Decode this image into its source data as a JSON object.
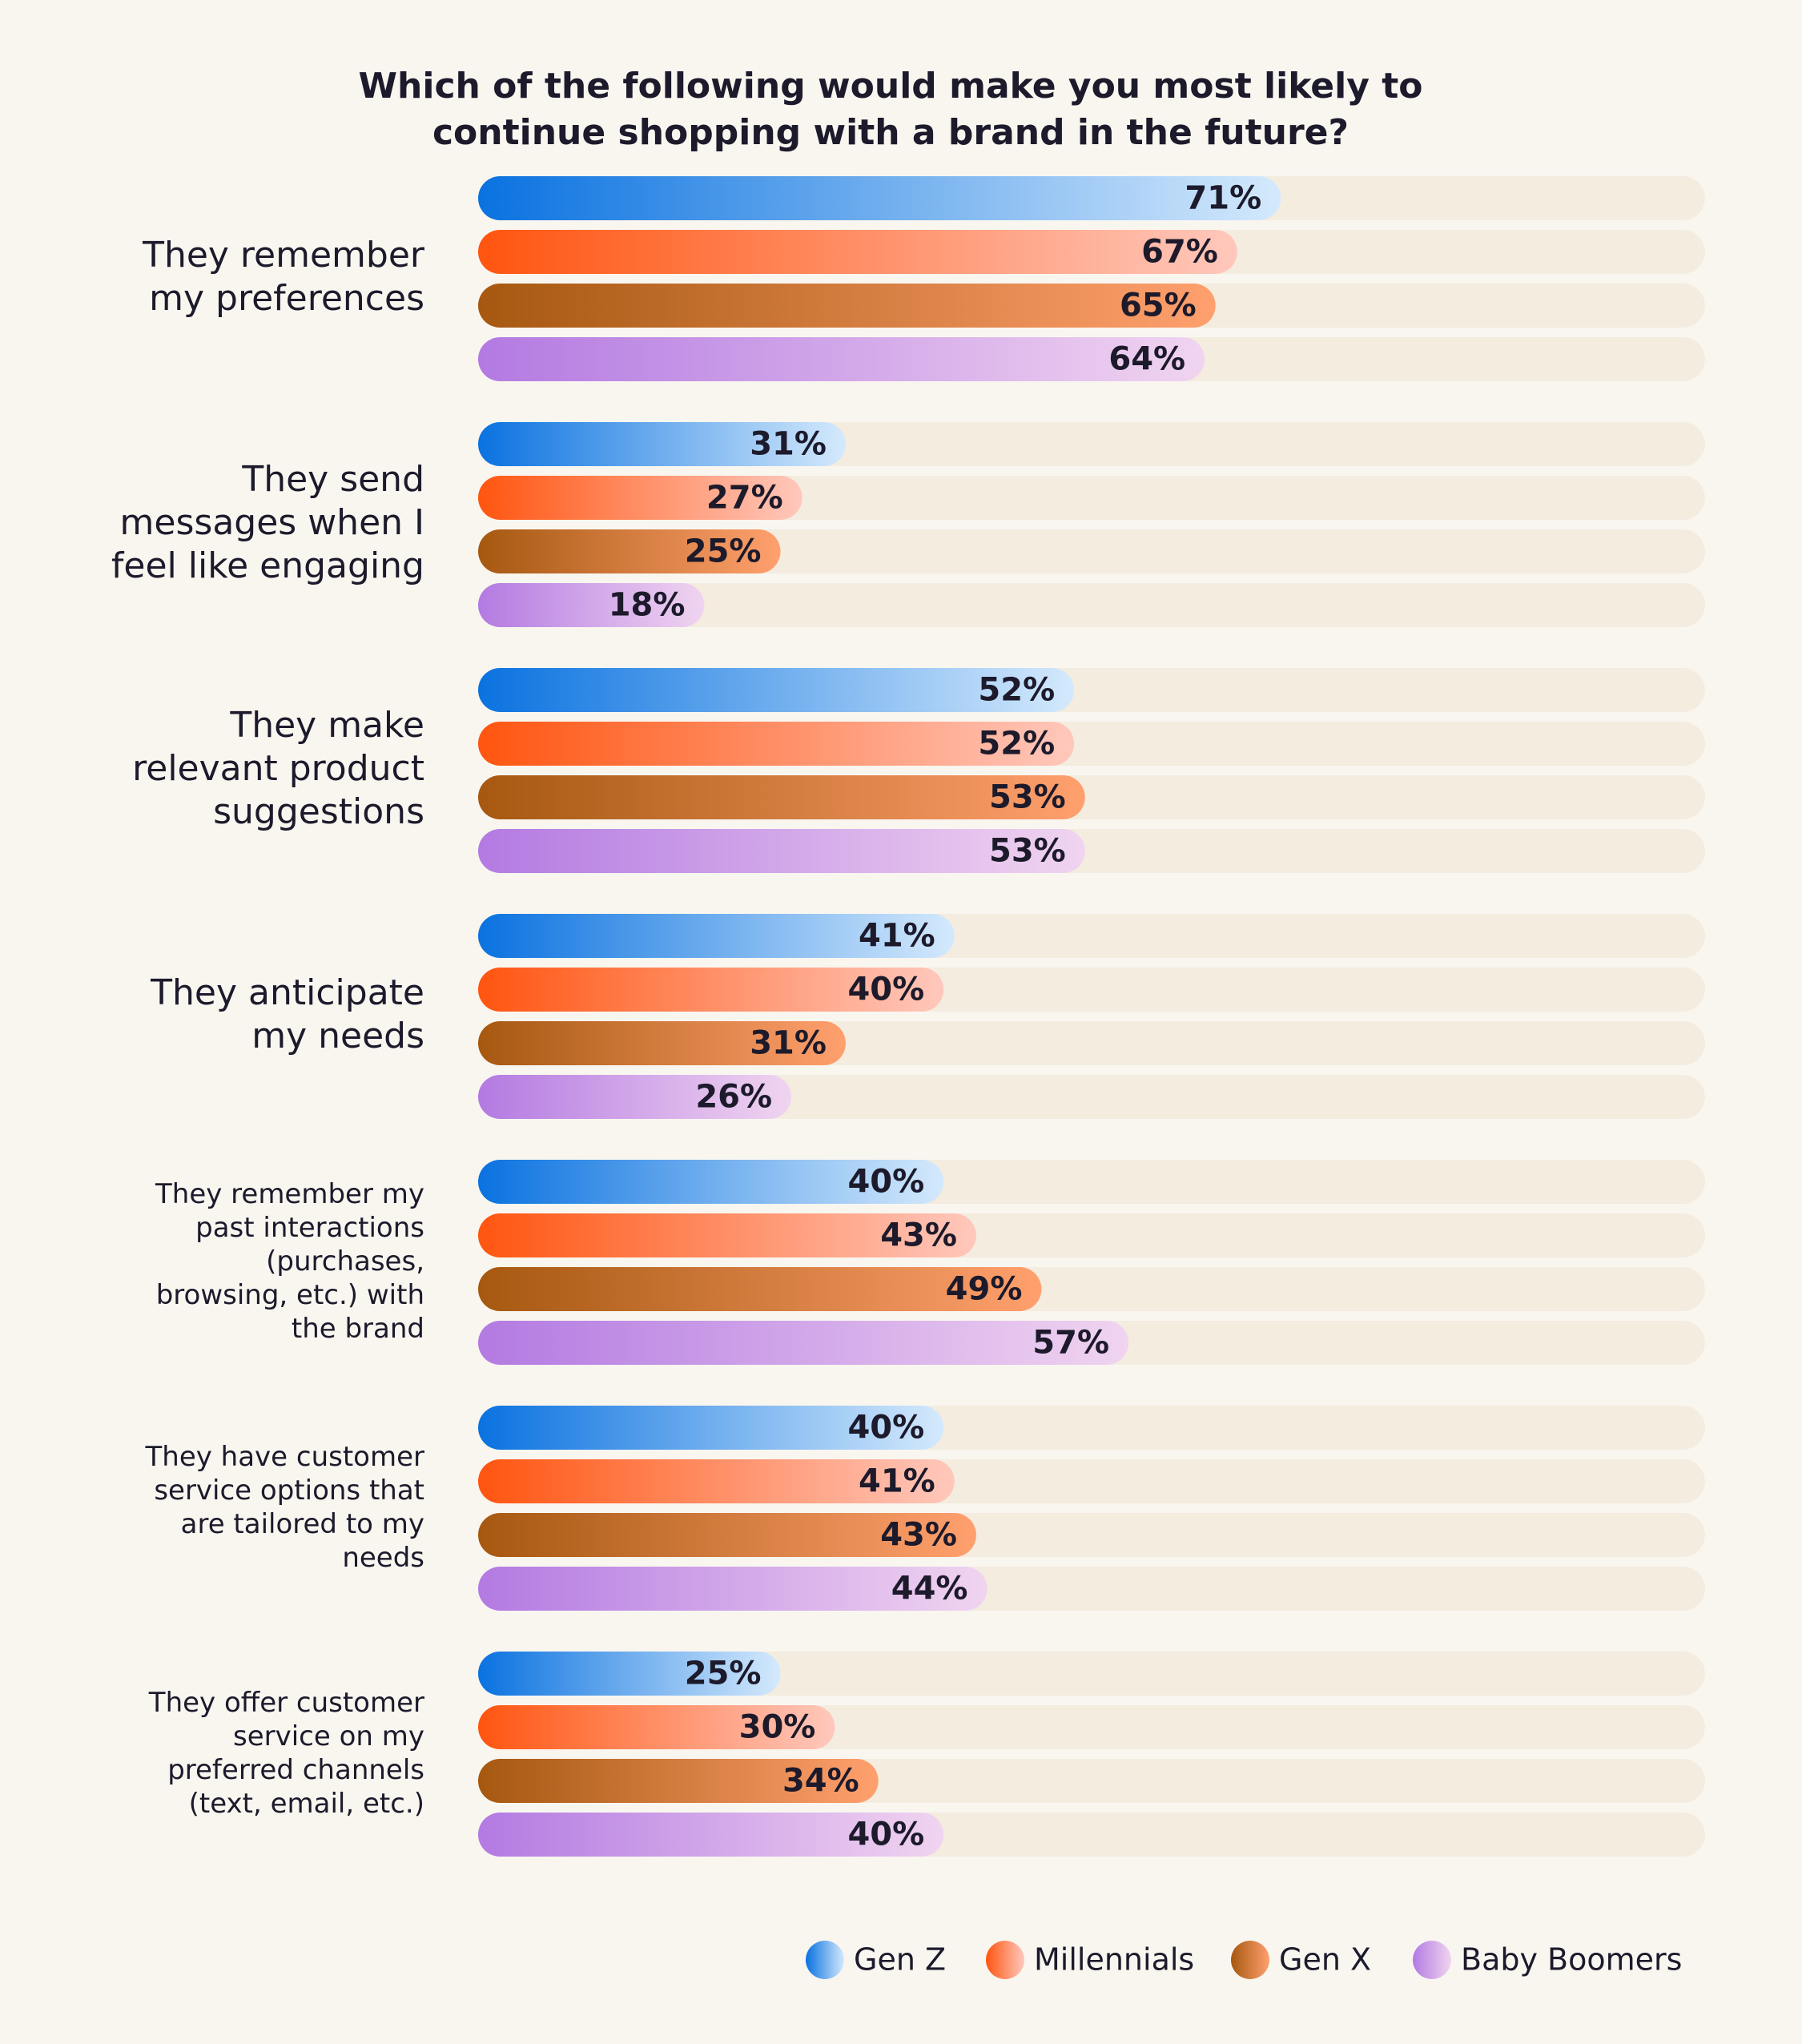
{
  "chart_data": {
    "type": "hbar",
    "title": "Which of the following would make you most likely to continue shopping with a brand in the future?",
    "categories": [
      "They remember my preferences",
      "They send messages when I feel like engaging",
      "They make relevant product suggestions",
      "They anticipate my needs",
      "They remember my past interactions (purchases, browsing, etc.) with the brand",
      "They have customer service options that are tailored to my needs",
      "They offer customer service on my preferred channels (text, email, etc.)"
    ],
    "series": [
      {
        "name": "Gen Z",
        "color": "#0a72e0",
        "color_end": "#d4e9fc",
        "values": [
          71,
          31,
          52,
          41,
          40,
          40,
          25
        ],
        "value_labels": [
          "71%",
          "31%",
          "52%",
          "41%",
          "40%",
          "40%",
          "25%"
        ]
      },
      {
        "name": "Millennials",
        "color": "#ff5510",
        "color_end": "#ffc8bc",
        "values": [
          67,
          27,
          52,
          40,
          43,
          41,
          30
        ],
        "value_labels": [
          "67%",
          "27%",
          "52%",
          "40%",
          "43%",
          "41%",
          "30%"
        ]
      },
      {
        "name": "Gen X",
        "color": "#a65810",
        "color_end": "#ffa06e",
        "values": [
          65,
          25,
          53,
          31,
          49,
          43,
          34
        ],
        "value_labels": [
          "65%",
          "25%",
          "53%",
          "31%",
          "49%",
          "43%",
          "34%"
        ]
      },
      {
        "name": "Baby Boomers",
        "color": "#b37ae2",
        "color_end": "#f0d4f0",
        "values": [
          64,
          18,
          53,
          26,
          57,
          44,
          40
        ],
        "value_labels": [
          "64%",
          "18%",
          "53%",
          "26%",
          "57%",
          "44%",
          "40%"
        ]
      }
    ],
    "xlim": [
      0,
      110
    ],
    "track_color": "#f3ecdf",
    "legend": "bottom-right"
  }
}
